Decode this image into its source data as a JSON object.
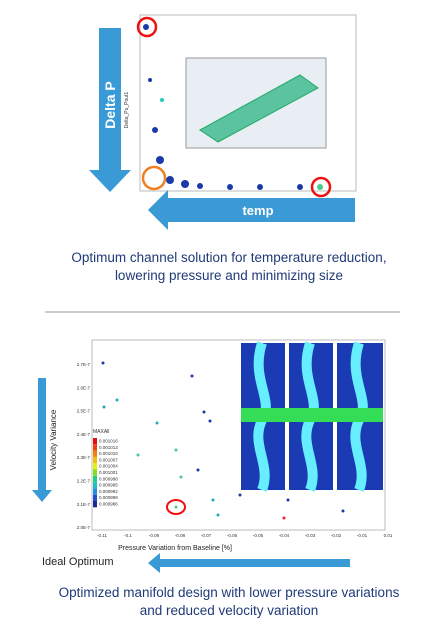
{
  "figure1": {
    "y_label": "Delta P",
    "y_axis_name": "Delta_Pu_Pout1",
    "x_label": "temp",
    "caption": [
      "Optimum channel solution for temperature reduction,",
      "lowering pressure and minimizing size"
    ]
  },
  "figure2": {
    "y_label": "Velocity Variance",
    "x_label": "Pressure Variation from Baseline [%]",
    "arrow_label": "Ideal Optimum",
    "yticks": [
      "2.7E-7",
      "2.6E-7",
      "2.5E-7",
      "2.4E-7",
      "2.3E-7",
      "2.2E-7",
      "2.1E-7",
      "2.0E-7"
    ],
    "xticks": [
      "-0.11",
      "-0.1",
      "-0.09",
      "-0.08",
      "-0.07",
      "-0.06",
      "-0.05",
      "-0.04",
      "-0.03",
      "-0.02",
      "-0.01",
      "0.01"
    ],
    "legend_title": "MAXAll",
    "legend": [
      "0.001016",
      "0.001013",
      "0.001010",
      "0.001007",
      "0.001004",
      "0.001001",
      "0.000998",
      "0.000995",
      "0.000992",
      "0.000989",
      "0.000986"
    ],
    "caption": [
      "Optimized manifold design with lower pressure variations",
      "and reduced velocity variation"
    ]
  }
}
